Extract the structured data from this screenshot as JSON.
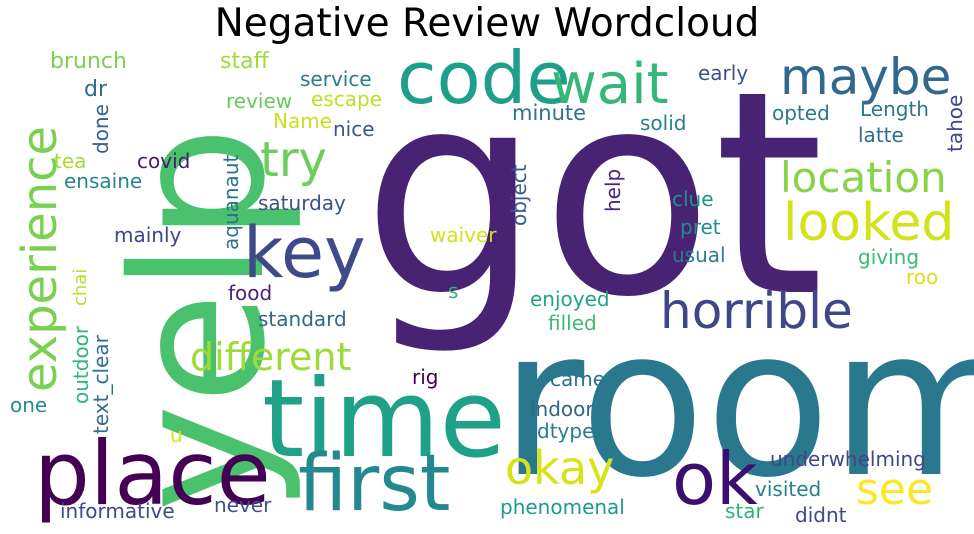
{
  "chart_data": {
    "type": "wordcloud",
    "title": "Negative Review Wordcloud",
    "words": [
      {
        "text": "got",
        "color": "#482374"
      },
      {
        "text": "room",
        "color": "#2a788e"
      },
      {
        "text": "yelp",
        "color": "#4ac16d"
      },
      {
        "text": "time",
        "color": "#1fa187"
      },
      {
        "text": "place",
        "color": "#440154"
      },
      {
        "text": "first",
        "color": "#23898e"
      },
      {
        "text": "ok",
        "color": "#3b0f70"
      },
      {
        "text": "code",
        "color": "#1f9e89"
      },
      {
        "text": "wait",
        "color": "#35b779"
      },
      {
        "text": "key",
        "color": "#3e4a89"
      },
      {
        "text": "experience",
        "color": "#7ad151"
      },
      {
        "text": "maybe",
        "color": "#31688e"
      },
      {
        "text": "looked",
        "color": "#d2e21b"
      },
      {
        "text": "horrible",
        "color": "#3f4788"
      },
      {
        "text": "location",
        "color": "#86d549"
      },
      {
        "text": "try",
        "color": "#6ccd5a"
      },
      {
        "text": "different",
        "color": "#a0da39"
      },
      {
        "text": "okay",
        "color": "#d8e219"
      },
      {
        "text": "see",
        "color": "#fde725"
      },
      {
        "text": "brunch",
        "color": "#7ad151"
      },
      {
        "text": "staff",
        "color": "#a0da39"
      },
      {
        "text": "service",
        "color": "#287d8e"
      },
      {
        "text": "early",
        "color": "#3b528b"
      },
      {
        "text": "dr",
        "color": "#306a8e"
      },
      {
        "text": "review",
        "color": "#65cb5e"
      },
      {
        "text": "escape",
        "color": "#bddf26"
      },
      {
        "text": "minute",
        "color": "#2c728e"
      },
      {
        "text": "opted",
        "color": "#2a788e"
      },
      {
        "text": "Length",
        "color": "#2a788e"
      },
      {
        "text": "Name",
        "color": "#c8e020"
      },
      {
        "text": "nice",
        "color": "#39568c"
      },
      {
        "text": "solid",
        "color": "#26828e"
      },
      {
        "text": "latte",
        "color": "#2e6f8e"
      },
      {
        "text": "tahoe",
        "color": "#414487"
      },
      {
        "text": "done",
        "color": "#33638d"
      },
      {
        "text": "tea",
        "color": "#a8db34"
      },
      {
        "text": "covid",
        "color": "#481a6c"
      },
      {
        "text": "ensaine",
        "color": "#24878e"
      },
      {
        "text": "aquanaut",
        "color": "#2d718e"
      },
      {
        "text": "saturday",
        "color": "#3b528b"
      },
      {
        "text": "help",
        "color": "#482878"
      },
      {
        "text": "clue",
        "color": "#21918c"
      },
      {
        "text": "object",
        "color": "#365c8d"
      },
      {
        "text": "mainly",
        "color": "#3f4788"
      },
      {
        "text": "waiver",
        "color": "#d2e21b"
      },
      {
        "text": "pret",
        "color": "#238a8d"
      },
      {
        "text": "usual",
        "color": "#277f8e"
      },
      {
        "text": "giving",
        "color": "#3aba76"
      },
      {
        "text": "roo",
        "color": "#d8e219"
      },
      {
        "text": "chai",
        "color": "#b5de2b"
      },
      {
        "text": "food",
        "color": "#482475"
      },
      {
        "text": "s",
        "color": "#2db27d"
      },
      {
        "text": "enjoyed",
        "color": "#20a486"
      },
      {
        "text": "standard",
        "color": "#31688e"
      },
      {
        "text": "filled",
        "color": "#3dbc74"
      },
      {
        "text": "outdoor",
        "color": "#31b57b"
      },
      {
        "text": "text_clear",
        "color": "#2e6e8e"
      },
      {
        "text": "rig",
        "color": "#440154"
      },
      {
        "text": "one",
        "color": "#238a8d"
      },
      {
        "text": "came",
        "color": "#2c738e"
      },
      {
        "text": "indoor",
        "color": "#33638d"
      },
      {
        "text": "dtype",
        "color": "#27808e"
      },
      {
        "text": "u",
        "color": "#d8e219"
      },
      {
        "text": "underwhelming",
        "color": "#3f4788"
      },
      {
        "text": "visited",
        "color": "#26828e"
      },
      {
        "text": "informative",
        "color": "#3e4989"
      },
      {
        "text": "never",
        "color": "#3b528b"
      },
      {
        "text": "phenomenal",
        "color": "#1e9b8a"
      },
      {
        "text": "star",
        "color": "#2db27d"
      },
      {
        "text": "didnt",
        "color": "#3e4a89"
      }
    ]
  }
}
